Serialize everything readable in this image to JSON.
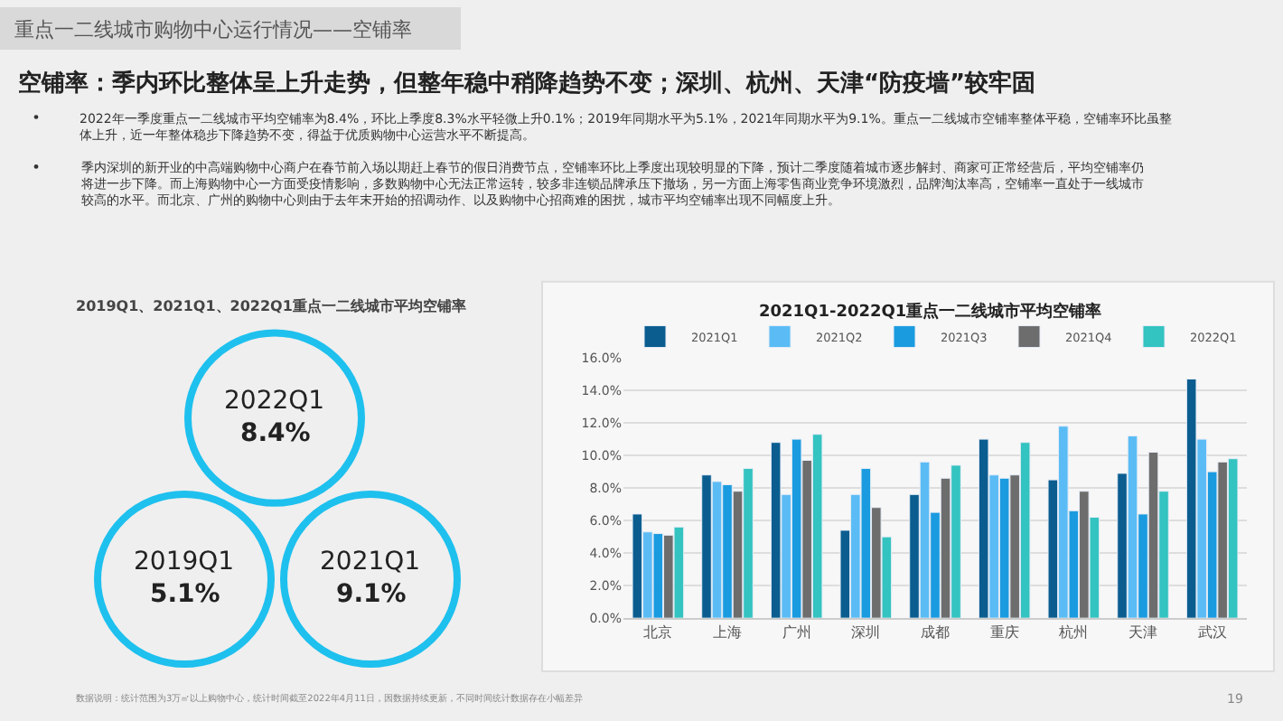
{
  "chart_data": [
    {
      "type": "other",
      "title": "重点一二线城市购物中心运行情况——空铺率",
      "subtitle": "空铺率：季内环比整体呈上升走势，但整年稳中稍降趋势不变；深圳、杭州、天津“防疫墙”较牢固",
      "annotations": [
        "2022年一季度重点一二线城市平均空铺率为8.4%，环比上季度8.3%水平轻微上升0.1%；2019年同期水平为5.1%，2021年同期水平为9.1%。重点一二线城市空铺率整体平稳，空铺率环比虽整体上升，近一年整体稳步下降趋势不变，得益于优质购物中心运营水平不断提高。",
        "季内深圳的新开业的中高端购物中心商户在春节前入场以期赶上春节的假日消费节点，空铺率环比上季度出现较明显的下降，预计二季度随着城市逐步解封、商家可正常经营后，平均空铺率仍将进一步下降。而上海购物中心一方面受疫情影响，多数购物中心无法正常运转，较多非连锁品牌承压下撤场，另一方面上海零售商业竞争环境激烈，品牌淘汰率高，空铺率一直处于一线城市较高的水平。而北京、广州的购物中心则由于去年末开始的招调动作、以及购物中心招商难的困扰，城市平均空铺率出现不同幅度上升。",
        "数据说明：统计范围为3万㎡以上购物中心，统计时间截至2022年4月11日，因数据持续更新，不同时间统计数据存在小幅差异",
        "19"
      ]
    },
    {
      "type": "other",
      "title": "2019Q1、2021Q1、2022Q1重点一二线城市平均空铺率",
      "categories": [
        "2022Q1",
        "2019Q1",
        "2021Q1"
      ],
      "value_labels": [
        "8.4%",
        "5.1%",
        "9.1%"
      ],
      "color": "#1ec0ee"
    },
    {
      "type": "bar",
      "title": "2021Q1-2022Q1重点一二线城市平均空铺率",
      "categories": [
        "北京",
        "上海",
        "广州",
        "深圳",
        "成都",
        "重庆",
        "杭州",
        "天津",
        "武汉"
      ],
      "series": [
        {
          "name": "2021Q1",
          "color": "#0b5d8f",
          "values": [
            6.4,
            8.8,
            10.8,
            5.4,
            7.6,
            11.0,
            8.5,
            8.9,
            14.7
          ]
        },
        {
          "name": "2021Q2",
          "color": "#5bbcf5",
          "values": [
            5.3,
            8.4,
            7.6,
            7.6,
            9.6,
            8.8,
            11.8,
            11.2,
            11.0
          ]
        },
        {
          "name": "2021Q3",
          "color": "#1a9be0",
          "values": [
            5.2,
            8.2,
            11.0,
            9.2,
            6.5,
            8.6,
            6.6,
            6.4,
            9.0
          ]
        },
        {
          "name": "2021Q4",
          "color": "#6d6d6d",
          "values": [
            5.1,
            7.8,
            9.7,
            6.8,
            8.6,
            8.8,
            7.8,
            10.2,
            9.6
          ]
        },
        {
          "name": "2022Q1",
          "color": "#33c3c0",
          "values": [
            5.6,
            9.2,
            11.3,
            5.0,
            9.4,
            10.8,
            6.2,
            7.8,
            9.8
          ]
        }
      ],
      "ylim": [
        0,
        16
      ],
      "yticks": [
        {
          "value": 0,
          "label": "0.0%"
        },
        {
          "value": 2,
          "label": "2.0%"
        },
        {
          "value": 4,
          "label": "4.0%"
        },
        {
          "value": 6,
          "label": "6.0%"
        },
        {
          "value": 8,
          "label": "8.0%"
        },
        {
          "value": 10,
          "label": "10.0%"
        },
        {
          "value": 12,
          "label": "12.0%"
        },
        {
          "value": 14,
          "label": "14.0%"
        },
        {
          "value": 16,
          "label": "16.0%"
        }
      ],
      "grid": "y",
      "legend": "top"
    }
  ]
}
